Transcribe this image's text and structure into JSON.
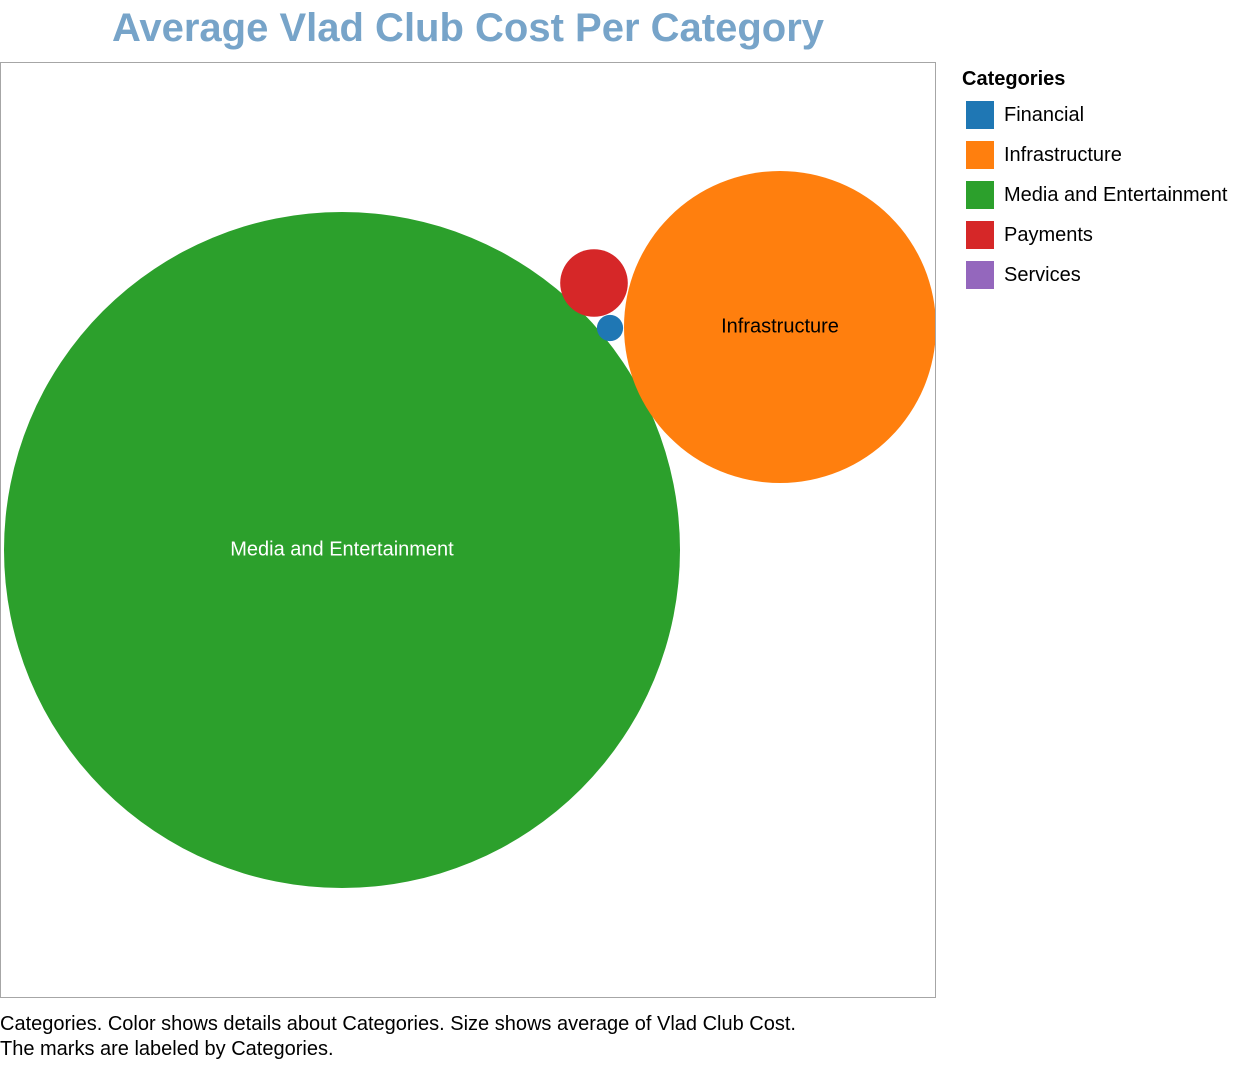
{
  "chart_data": {
    "type": "bubble",
    "title": "Average Vlad Club Cost Per Category",
    "size_measure": "average of Vlad Club Cost",
    "color_field": "Categories",
    "label_field": "Categories",
    "bubbles": [
      {
        "category": "Media and Entertainment",
        "relative_size": 100,
        "color": "#2ca02c",
        "label": "Media and Entertainment",
        "label_color": "#ffffff"
      },
      {
        "category": "Infrastructure",
        "relative_size": 21.3,
        "color": "#ff7f0e",
        "label": "Infrastructure",
        "label_color": "#000000"
      },
      {
        "category": "Payments",
        "relative_size": 1,
        "color": "#d62728",
        "label": "",
        "label_color": "#000000"
      },
      {
        "category": "Financial",
        "relative_size": 0.15,
        "color": "#1f77b4",
        "label": "",
        "label_color": "#000000"
      },
      {
        "category": "Services",
        "relative_size": 0,
        "color": "#9467bd",
        "label": "",
        "label_color": "#000000"
      }
    ]
  },
  "legend": {
    "title": "Categories",
    "items": [
      {
        "label": "Financial",
        "color": "#1f77b4"
      },
      {
        "label": "Infrastructure",
        "color": "#ff7f0e"
      },
      {
        "label": "Media and Entertainment",
        "color": "#2ca02c"
      },
      {
        "label": "Payments",
        "color": "#d62728"
      },
      {
        "label": "Services",
        "color": "#9467bd"
      }
    ]
  },
  "caption": {
    "line1": "Categories.  Color shows details about Categories.  Size shows average of Vlad Club Cost.",
    "line2": "The marks are labeled by Categories."
  }
}
